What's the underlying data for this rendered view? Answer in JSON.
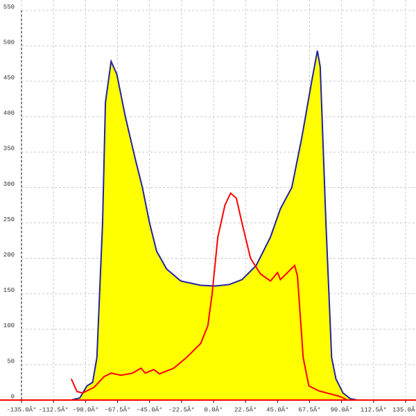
{
  "chart_data": {
    "type": "area",
    "xlim": [
      -135,
      135
    ],
    "ylim": [
      0,
      550
    ],
    "xticks": [
      {
        "value": -135,
        "label": "-135.0Â°"
      },
      {
        "value": -112.5,
        "label": "-112.5Â°"
      },
      {
        "value": -90,
        "label": "-90.0Â°"
      },
      {
        "value": -67.5,
        "label": "-67.5Â°"
      },
      {
        "value": -45,
        "label": "-45.0Â°"
      },
      {
        "value": -22.5,
        "label": "-22.5Â°"
      },
      {
        "value": 0,
        "label": "0.0Â°"
      },
      {
        "value": 22.5,
        "label": "22.5Â°"
      },
      {
        "value": 45,
        "label": "45.0Â°"
      },
      {
        "value": 67.5,
        "label": "67.5Â°"
      },
      {
        "value": 90,
        "label": "90.0Â°"
      },
      {
        "value": 112.5,
        "label": "112.5Â°"
      },
      {
        "value": 135,
        "label": "135.0Â°"
      }
    ],
    "yticks": [
      0,
      50,
      100,
      150,
      200,
      250,
      300,
      350,
      400,
      450,
      500,
      550
    ],
    "grid": true,
    "series": [
      {
        "color": "#2020a0",
        "fill": "#ffff00",
        "x": [
          -100,
          -94,
          -89,
          -85,
          -82,
          -78,
          -76,
          -72,
          -68,
          -62,
          -55,
          -50,
          -45,
          -40,
          -33,
          -23,
          -9,
          1,
          11,
          20,
          30,
          40,
          47,
          55,
          62,
          69,
          73,
          75,
          79,
          83,
          86,
          91,
          96,
          101
        ],
        "values": [
          0,
          3,
          20,
          25,
          60,
          250,
          420,
          478,
          460,
          400,
          340,
          300,
          250,
          210,
          185,
          168,
          162,
          161,
          163,
          170,
          190,
          230,
          270,
          300,
          370,
          450,
          493,
          470,
          250,
          60,
          30,
          10,
          2,
          0
        ]
      },
      {
        "color": "#ff0000",
        "x": [
          -100,
          -96,
          -92,
          -84,
          -77,
          -72,
          -65,
          -57,
          -51,
          -48,
          -42,
          -38,
          -28,
          -19,
          -9,
          -4,
          -1,
          3,
          8,
          12,
          16,
          20,
          26,
          33,
          40,
          45,
          47,
          52,
          57,
          59,
          63,
          67,
          74,
          89,
          94
        ],
        "values": [
          30,
          12,
          10,
          18,
          33,
          38,
          35,
          38,
          45,
          38,
          43,
          37,
          45,
          60,
          80,
          105,
          150,
          230,
          275,
          292,
          285,
          250,
          200,
          178,
          168,
          180,
          170,
          180,
          190,
          175,
          60,
          20,
          13,
          5,
          0
        ]
      }
    ]
  }
}
